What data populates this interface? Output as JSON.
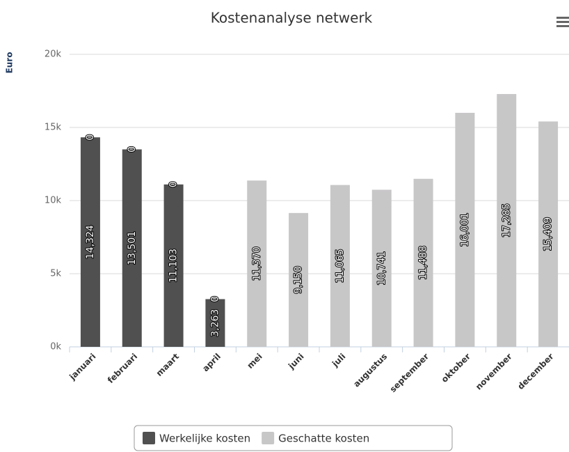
{
  "chart_data": {
    "type": "stacked-bar",
    "title": "Kostenanalyse netwerk",
    "y_axis_label": "Euro",
    "categories": [
      "januari",
      "februari",
      "maart",
      "april",
      "mei",
      "juni",
      "juli",
      "augustus",
      "september",
      "oktober",
      "november",
      "december"
    ],
    "series": [
      {
        "name": "Werkelijke kosten",
        "color": "#505050",
        "values": [
          14324,
          13501,
          11103,
          3263,
          null,
          null,
          null,
          null,
          null,
          null,
          null,
          null
        ],
        "value_labels": [
          "14,324",
          "13,501",
          "11,103",
          "3,263",
          null,
          null,
          null,
          null,
          null,
          null,
          null,
          null
        ]
      },
      {
        "name": "Geschatte kosten",
        "color": "#c8c7c8",
        "values": [
          0,
          0,
          0,
          0,
          11370,
          9150,
          11065,
          10741,
          11488,
          16001,
          17285,
          15409
        ],
        "value_labels": [
          "0",
          "0",
          "0",
          "0",
          "11,370",
          "9,150",
          "11,065",
          "10,741",
          "11,488",
          "16,001",
          "17,285",
          "15,409"
        ]
      }
    ],
    "ylim": [
      0,
      20000
    ],
    "yticks": [
      {
        "value": 0,
        "label": "0k"
      },
      {
        "value": 5000,
        "label": "5k"
      },
      {
        "value": 10000,
        "label": "10k"
      },
      {
        "value": 15000,
        "label": "15k"
      },
      {
        "value": 20000,
        "label": "20k"
      }
    ],
    "grid": true,
    "legend": "bottom"
  }
}
